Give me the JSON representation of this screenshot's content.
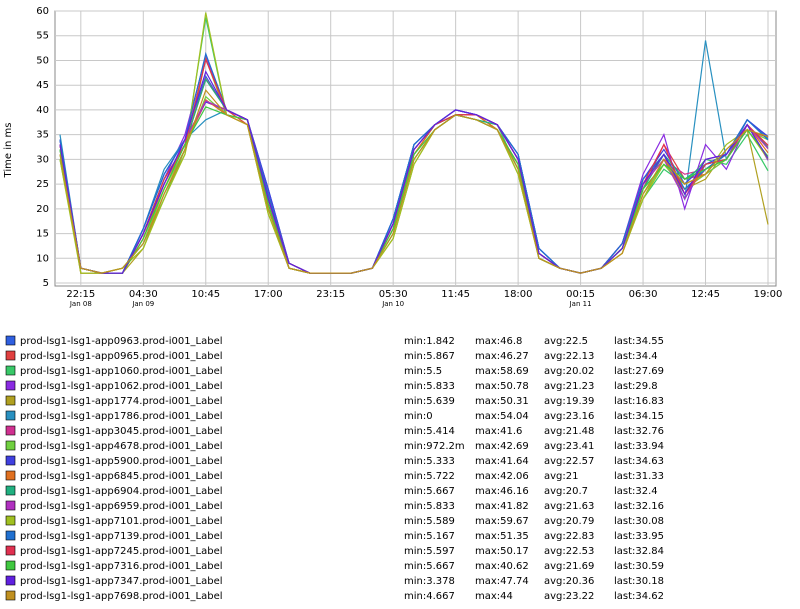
{
  "chart_data": {
    "type": "line",
    "y_label": "Time in ms",
    "x": [
      "Jan 08 20:10",
      "Jan 08 22:15",
      "Jan 09 00:20",
      "Jan 09 02:25",
      "Jan 09 04:30",
      "Jan 09 06:35",
      "Jan 09 08:40",
      "Jan 09 10:45",
      "Jan 09 12:50",
      "Jan 09 14:55",
      "Jan 09 17:00",
      "Jan 09 19:05",
      "Jan 09 21:10",
      "Jan 09 23:15",
      "Jan 10 01:20",
      "Jan 10 03:25",
      "Jan 10 05:30",
      "Jan 10 07:35",
      "Jan 10 09:40",
      "Jan 10 11:45",
      "Jan 10 13:50",
      "Jan 10 15:55",
      "Jan 10 18:00",
      "Jan 10 20:05",
      "Jan 10 22:10",
      "Jan 11 00:15",
      "Jan 11 02:20",
      "Jan 11 04:25",
      "Jan 11 06:30",
      "Jan 11 08:35",
      "Jan 11 10:40",
      "Jan 11 12:45",
      "Jan 11 14:50",
      "Jan 11 16:55",
      "Jan 11 19:00"
    ],
    "xlim": [
      "Jan 08 19:40",
      "Jan 11 19:48"
    ],
    "xticks": [
      {
        "value": "Jan 08 22:15",
        "label": "22:15",
        "date": "Jan 08"
      },
      {
        "value": "Jan 09 04:30",
        "label": "04:30",
        "date": "Jan 09"
      },
      {
        "value": "Jan 09 10:45",
        "label": "10:45"
      },
      {
        "value": "Jan 09 17:00",
        "label": "17:00"
      },
      {
        "value": "Jan 09 23:15",
        "label": "23:15"
      },
      {
        "value": "Jan 10 05:30",
        "label": "05:30",
        "date": "Jan 10"
      },
      {
        "value": "Jan 10 11:45",
        "label": "11:45"
      },
      {
        "value": "Jan 10 18:00",
        "label": "18:00"
      },
      {
        "value": "Jan 11 00:15",
        "label": "00:15",
        "date": "Jan 11"
      },
      {
        "value": "Jan 11 06:30",
        "label": "06:30"
      },
      {
        "value": "Jan 11 12:45",
        "label": "12:45"
      },
      {
        "value": "Jan 11 19:00",
        "label": "19:00"
      }
    ],
    "ylim": [
      4.4,
      60
    ],
    "yticks": [
      5,
      10,
      15,
      20,
      25,
      30,
      35,
      40,
      45,
      50,
      55,
      60
    ],
    "grid": true,
    "series": [
      {
        "name": "prod-lsg1-lsg1-app0963.prod-i001_Label",
        "color": "#2f5fe0",
        "stats": [
          "min:1.842",
          "max:46.8",
          "avg:22.5",
          "last:34.55"
        ],
        "values": [
          34,
          8,
          7,
          7,
          16,
          27,
          34,
          46.8,
          40,
          38,
          24,
          9,
          7,
          7,
          7,
          8,
          18,
          33,
          37,
          39,
          39,
          37,
          31,
          12,
          8,
          7,
          8,
          13,
          26,
          31,
          22,
          29,
          31,
          38,
          34.55
        ]
      },
      {
        "name": "prod-lsg1-lsg1-app0965.prod-i001_Label",
        "color": "#e04040",
        "stats": [
          "min:5.867",
          "max:46.27",
          "avg:22.13",
          "last:34.4"
        ],
        "values": [
          33,
          7,
          7,
          7,
          14,
          24,
          33,
          46.27,
          40,
          37,
          21,
          8,
          7,
          7,
          7,
          8,
          16,
          31,
          37,
          39,
          39,
          36,
          29,
          10,
          8,
          7,
          8,
          12,
          24,
          33,
          26,
          27,
          30,
          36,
          34.4
        ]
      },
      {
        "name": "prod-lsg1-lsg1-app1060.prod-i001_Label",
        "color": "#38c868",
        "stats": [
          "min:5.5",
          "max:58.69",
          "avg:20.02",
          "last:27.69"
        ],
        "values": [
          30,
          8,
          7,
          8,
          13,
          22,
          32,
          58.69,
          39,
          38,
          20,
          9,
          7,
          7,
          7,
          8,
          15,
          30,
          36,
          39,
          38,
          37,
          28,
          11,
          8,
          7,
          8,
          12,
          22,
          28,
          25,
          30,
          29,
          35,
          27.69
        ]
      },
      {
        "name": "prod-lsg1-lsg1-app1062.prod-i001_Label",
        "color": "#8a2be2",
        "stats": [
          "min:5.833",
          "max:50.78",
          "avg:21.23",
          "last:29.8"
        ],
        "values": [
          34,
          8,
          7,
          7,
          15,
          26,
          35,
          50.78,
          40,
          38,
          22,
          8,
          7,
          7,
          7,
          8,
          17,
          32,
          37,
          40,
          39,
          37,
          30,
          11,
          8,
          7,
          8,
          13,
          27,
          35,
          20,
          33,
          28,
          37,
          29.8
        ]
      },
      {
        "name": "prod-lsg1-lsg1-app1774.prod-i001_Label",
        "color": "#b0a020",
        "stats": [
          "min:5.639",
          "max:50.31",
          "avg:19.39",
          "last:16.83"
        ],
        "values": [
          32,
          7,
          7,
          7,
          12,
          23,
          31,
          50.31,
          39,
          37,
          19,
          8,
          7,
          7,
          7,
          8,
          14,
          29,
          36,
          39,
          39,
          36,
          27,
          10,
          8,
          7,
          8,
          11,
          22,
          30,
          24,
          26,
          32,
          36,
          16.83
        ]
      },
      {
        "name": "prod-lsg1-lsg1-app1786.prod-i001_Label",
        "color": "#2890c0",
        "stats": [
          "min:0",
          "max:54.04",
          "avg:23.16",
          "last:34.15"
        ],
        "values": [
          35,
          8,
          7,
          7,
          16,
          28,
          34,
          38,
          40,
          38,
          23,
          9,
          7,
          7,
          7,
          8,
          18,
          33,
          37,
          40,
          39,
          37,
          31,
          12,
          8,
          7,
          8,
          13,
          26,
          31,
          22,
          54.04,
          30,
          38,
          34.15
        ]
      },
      {
        "name": "prod-lsg1-lsg1-app3045.prod-i001_Label",
        "color": "#d03090",
        "stats": [
          "min:5.414",
          "max:41.6",
          "avg:21.48",
          "last:32.76"
        ],
        "values": [
          33,
          8,
          7,
          7,
          15,
          25,
          33,
          41.6,
          40,
          38,
          22,
          9,
          7,
          7,
          7,
          8,
          17,
          32,
          37,
          39,
          39,
          37,
          30,
          11,
          8,
          7,
          8,
          12,
          25,
          30,
          27,
          28,
          31,
          37,
          32.76
        ]
      },
      {
        "name": "prod-lsg1-lsg1-app4678.prod-i001_Label",
        "color": "#70d040",
        "stats": [
          "min:972.2m",
          "max:42.69",
          "avg:23.41",
          "last:33.94"
        ],
        "values": [
          31,
          8,
          7,
          8,
          13,
          24,
          32,
          42.69,
          39,
          37,
          20,
          8,
          7,
          7,
          7,
          8,
          15,
          30,
          36,
          39,
          38,
          36,
          28,
          10,
          8,
          7,
          8,
          12,
          23,
          29,
          24,
          27,
          30,
          36,
          33.94
        ]
      },
      {
        "name": "prod-lsg1-lsg1-app5900.prod-i001_Label",
        "color": "#4040e0",
        "stats": [
          "min:5.333",
          "max:41.64",
          "avg:22.57",
          "last:34.63"
        ],
        "values": [
          34,
          8,
          7,
          7,
          16,
          27,
          34,
          41.64,
          40,
          38,
          24,
          9,
          7,
          7,
          7,
          8,
          18,
          33,
          37,
          39,
          39,
          37,
          31,
          12,
          8,
          7,
          8,
          13,
          26,
          32,
          25,
          29,
          31,
          38,
          34.63
        ]
      },
      {
        "name": "prod-lsg1-lsg1-app6845.prod-i001_Label",
        "color": "#e07020",
        "stats": [
          "min:5.722",
          "max:42.06",
          "avg:21",
          "last:31.33"
        ],
        "values": [
          33,
          8,
          7,
          7,
          14,
          25,
          33,
          42.06,
          39,
          38,
          21,
          8,
          7,
          7,
          7,
          8,
          16,
          31,
          37,
          39,
          39,
          36,
          29,
          11,
          8,
          7,
          8,
          12,
          25,
          30,
          23,
          28,
          31,
          37,
          31.33
        ]
      },
      {
        "name": "prod-lsg1-lsg1-app6904.prod-i001_Label",
        "color": "#20b080",
        "stats": [
          "min:5.667",
          "max:46.16",
          "avg:20.7",
          "last:32.4"
        ],
        "values": [
          32,
          8,
          7,
          7,
          15,
          26,
          33,
          46.16,
          40,
          38,
          22,
          9,
          7,
          7,
          7,
          8,
          17,
          32,
          37,
          39,
          38,
          37,
          30,
          11,
          8,
          7,
          8,
          12,
          24,
          31,
          26,
          29,
          30,
          37,
          32.4
        ]
      },
      {
        "name": "prod-lsg1-lsg1-app6959.prod-i001_Label",
        "color": "#b030c0",
        "stats": [
          "min:5.833",
          "max:41.82",
          "avg:21.63",
          "last:32.16"
        ],
        "values": [
          33,
          8,
          7,
          7,
          15,
          25,
          34,
          41.82,
          40,
          38,
          23,
          9,
          7,
          7,
          7,
          8,
          17,
          32,
          37,
          40,
          39,
          37,
          30,
          11,
          8,
          7,
          8,
          13,
          25,
          30,
          22,
          30,
          31,
          37,
          32.16
        ]
      },
      {
        "name": "prod-lsg1-lsg1-app7101.prod-i001_Label",
        "color": "#a0c020",
        "stats": [
          "min:5.589",
          "max:59.67",
          "avg:20.79",
          "last:30.08"
        ],
        "values": [
          30,
          7,
          7,
          8,
          12,
          22,
          31,
          59.67,
          39,
          37,
          19,
          8,
          7,
          7,
          7,
          8,
          14,
          29,
          36,
          39,
          38,
          36,
          27,
          10,
          8,
          7,
          8,
          11,
          22,
          29,
          25,
          27,
          33,
          36,
          30.08
        ]
      },
      {
        "name": "prod-lsg1-lsg1-app7139.prod-i001_Label",
        "color": "#2070d0",
        "stats": [
          "min:5.167",
          "max:51.35",
          "avg:22.83",
          "last:33.95"
        ],
        "values": [
          34,
          8,
          7,
          7,
          16,
          27,
          34,
          51.35,
          40,
          38,
          23,
          9,
          7,
          7,
          7,
          8,
          18,
          33,
          37,
          40,
          39,
          37,
          31,
          12,
          8,
          7,
          8,
          13,
          26,
          31,
          24,
          28,
          31,
          38,
          33.95
        ]
      },
      {
        "name": "prod-lsg1-lsg1-app7245.prod-i001_Label",
        "color": "#e03050",
        "stats": [
          "min:5.597",
          "max:50.17",
          "avg:22.53",
          "last:32.84"
        ],
        "values": [
          33,
          8,
          7,
          7,
          15,
          26,
          33,
          50.17,
          40,
          38,
          22,
          9,
          7,
          7,
          7,
          8,
          17,
          32,
          37,
          39,
          39,
          37,
          30,
          11,
          8,
          7,
          8,
          12,
          25,
          33,
          23,
          29,
          30,
          37,
          32.84
        ]
      },
      {
        "name": "prod-lsg1-lsg1-app7316.prod-i001_Label",
        "color": "#40c840",
        "stats": [
          "min:5.667",
          "max:40.62",
          "avg:21.69",
          "last:30.59"
        ],
        "values": [
          32,
          8,
          7,
          7,
          14,
          24,
          33,
          40.62,
          39,
          38,
          21,
          8,
          7,
          7,
          7,
          8,
          16,
          31,
          36,
          39,
          38,
          36,
          29,
          10,
          8,
          7,
          8,
          12,
          24,
          29,
          26,
          28,
          30,
          36,
          30.59
        ]
      },
      {
        "name": "prod-lsg1-lsg1-app7347.prod-i001_Label",
        "color": "#6020e0",
        "stats": [
          "min:3.378",
          "max:47.74",
          "avg:20.36",
          "last:30.18"
        ],
        "values": [
          33,
          8,
          7,
          7,
          15,
          25,
          34,
          47.74,
          40,
          38,
          22,
          9,
          7,
          7,
          7,
          8,
          17,
          32,
          37,
          40,
          39,
          37,
          30,
          11,
          8,
          7,
          8,
          12,
          25,
          31,
          23,
          30,
          31,
          37,
          30.18
        ]
      },
      {
        "name": "prod-lsg1-lsg1-app7698.prod-i001_Label",
        "color": "#c09020",
        "stats": [
          "min:4.667",
          "max:44",
          "avg:23.22",
          "last:34.62"
        ],
        "values": [
          31,
          8,
          7,
          8,
          13,
          23,
          32,
          44,
          39,
          37,
          20,
          8,
          7,
          7,
          7,
          8,
          15,
          30,
          36,
          39,
          38,
          36,
          28,
          10,
          8,
          7,
          8,
          11,
          23,
          30,
          25,
          27,
          32,
          36,
          34.62
        ]
      }
    ]
  }
}
